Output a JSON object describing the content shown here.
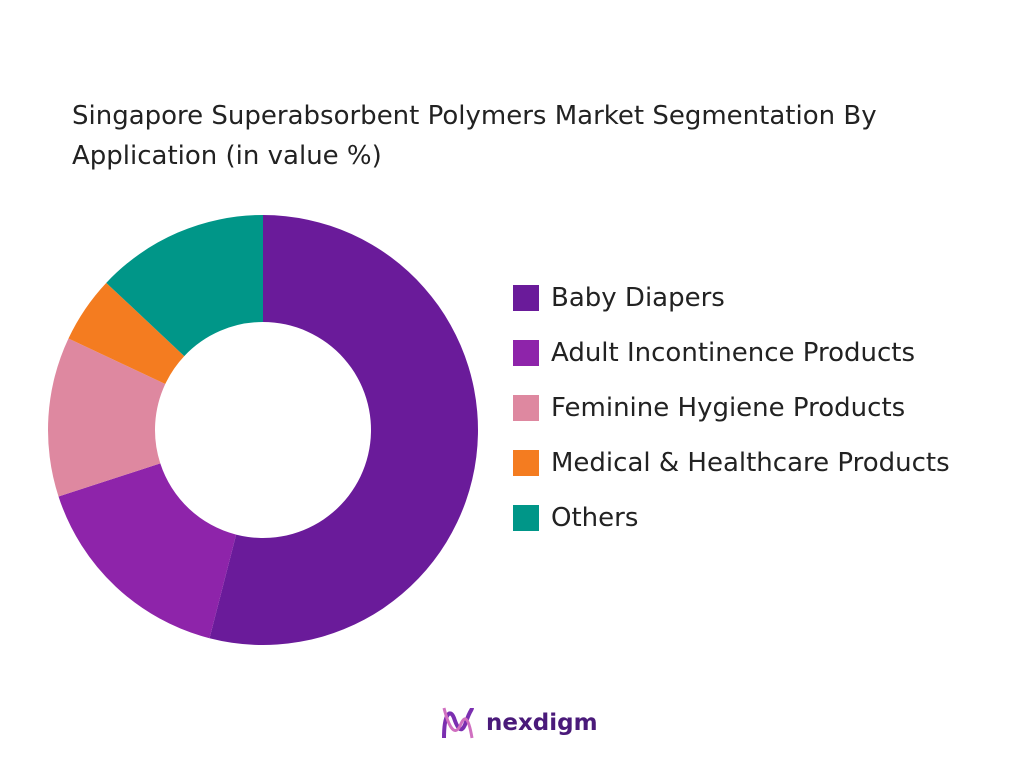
{
  "chart_data": {
    "type": "donut",
    "title": "Singapore Superabsorbent Polymers Market Segmentation By Application (in value %)",
    "categories": [
      "Baby Diapers",
      "Adult Incontinence Products",
      "Feminine Hygiene Products",
      "Medical & Healthcare Products",
      "Others"
    ],
    "values": [
      54,
      16,
      12,
      5,
      13
    ],
    "colors": [
      "#6a1b9a",
      "#8e24aa",
      "#de88a0",
      "#f47c20",
      "#009688"
    ],
    "legend": "right"
  },
  "brand": "nexdigm"
}
